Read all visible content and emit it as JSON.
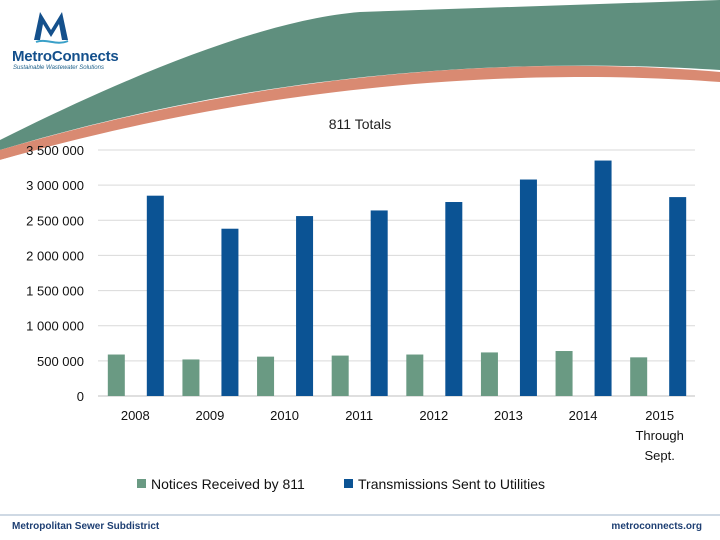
{
  "branding": {
    "logo_name": "MetroConnects",
    "logo_tagline": "Sustainable Wastewater Solutions",
    "footer_left": "Metropolitan Sewer Subdistrict",
    "footer_right": "metroconnects.org",
    "colors": {
      "brand_blue": "#14508c",
      "teal": "#5f8f7e",
      "salmon": "#d98a72"
    }
  },
  "chart_data": {
    "type": "bar",
    "title": "811 Totals",
    "xlabel": "",
    "ylabel": "",
    "ylim": [
      0,
      3500000
    ],
    "yticks": [
      "0",
      "500 000",
      "1 000 000",
      "1 500 000",
      "2 000 000",
      "2 500 000",
      "3 000 000",
      "3 500 000"
    ],
    "grid": true,
    "legend": "bottom",
    "categories": [
      [
        "2008"
      ],
      [
        "2009"
      ],
      [
        "2010"
      ],
      [
        "2011"
      ],
      [
        "2012"
      ],
      [
        "2013"
      ],
      [
        "2014"
      ],
      [
        "2015",
        "Through",
        "Sept."
      ]
    ],
    "series": [
      {
        "name": "Notices Received by 811",
        "color": "#6a9a83",
        "values": [
          590000,
          520000,
          560000,
          575000,
          590000,
          620000,
          640000,
          550000
        ]
      },
      {
        "name": "Transmissions Sent to Utilities",
        "color": "#0b5394",
        "values": [
          2850000,
          2380000,
          2560000,
          2640000,
          2760000,
          3080000,
          3350000,
          2830000
        ]
      }
    ]
  }
}
